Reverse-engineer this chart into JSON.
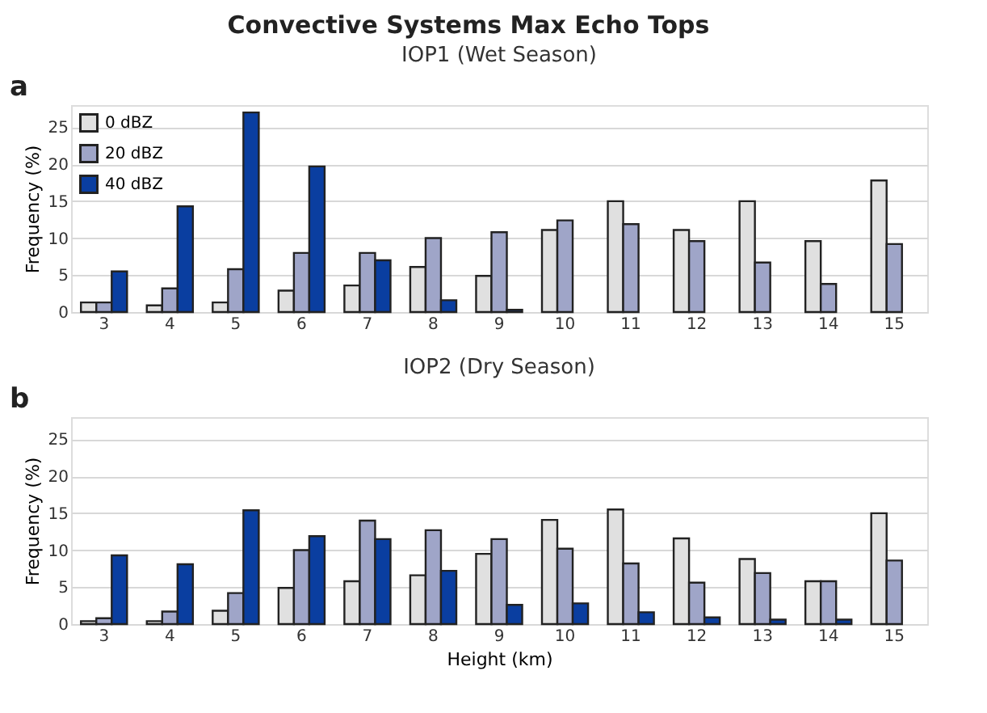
{
  "chart_data": [
    {
      "type": "bar",
      "title": "IOP1 (Wet Season)",
      "ylabel": "Frequency (%)",
      "annotations": [
        "Convective Systems Max Echo Tops",
        "a"
      ],
      "categories": [
        "3",
        "4",
        "5",
        "6",
        "7",
        "8",
        "9",
        "10",
        "11",
        "12",
        "13",
        "14",
        "15"
      ],
      "series": [
        {
          "name": "0 dBZ",
          "color": "#e0e0e0",
          "values": [
            1.3,
            0.9,
            1.3,
            2.9,
            3.6,
            6.1,
            4.9,
            11.1,
            15,
            11.1,
            15,
            9.6,
            17.8
          ]
        },
        {
          "name": "20 dBZ",
          "color": "#9fa5c8",
          "values": [
            1.3,
            3.2,
            5.8,
            8,
            8,
            10,
            10.8,
            12.4,
            11.9,
            9.6,
            6.7,
            3.8,
            9.2
          ]
        },
        {
          "name": "40 dBZ",
          "color": "#0a3ea0",
          "values": [
            5.5,
            14.3,
            27,
            19.7,
            7,
            1.6,
            0.3,
            null,
            null,
            null,
            null,
            null,
            null
          ]
        }
      ],
      "ylim": [
        0,
        28
      ],
      "yticks": [
        0,
        5,
        10,
        15,
        20,
        25
      ],
      "grid": "y",
      "legend": "top left"
    },
    {
      "type": "bar",
      "title": "IOP2 (Dry Season)",
      "xlabel": "Height (km)",
      "ylabel": "Frequency (%)",
      "annotations": [
        "b"
      ],
      "categories": [
        "3",
        "4",
        "5",
        "6",
        "7",
        "8",
        "9",
        "10",
        "11",
        "12",
        "13",
        "14",
        "15"
      ],
      "series": [
        {
          "name": "0 dBZ",
          "color": "#e0e0e0",
          "values": [
            0.4,
            0.4,
            1.8,
            4.9,
            5.8,
            6.6,
            9.5,
            14.1,
            15.5,
            11.6,
            8.8,
            5.8,
            15
          ]
        },
        {
          "name": "20 dBZ",
          "color": "#9fa5c8",
          "values": [
            0.8,
            1.7,
            4.2,
            10,
            14,
            12.7,
            11.5,
            10.2,
            8.2,
            5.6,
            6.9,
            5.8,
            8.6
          ]
        },
        {
          "name": "40 dBZ",
          "color": "#0a3ea0",
          "values": [
            9.3,
            8.1,
            15.4,
            11.9,
            11.5,
            7.2,
            2.6,
            2.8,
            1.6,
            0.9,
            0.6,
            0.6,
            null
          ]
        }
      ],
      "ylim": [
        0,
        28
      ],
      "yticks": [
        0,
        5,
        10,
        15,
        20,
        25
      ],
      "grid": "y",
      "legend": "top left"
    }
  ]
}
